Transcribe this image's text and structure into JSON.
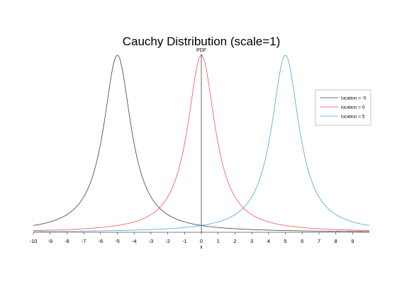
{
  "chart_data": {
    "type": "line",
    "title": "Cauchy Distribution (scale=1)",
    "xlabel": "x",
    "ylabel": "PDF",
    "xlim": [
      -10,
      10
    ],
    "ylim": [
      0,
      0.3183
    ],
    "x_ticks": [
      -10,
      -9,
      -8,
      -7,
      -6,
      -5,
      -4,
      -3,
      -2,
      -1,
      0,
      1,
      2,
      3,
      4,
      5,
      6,
      7,
      8,
      9
    ],
    "grid": false,
    "legend_position": "top-right",
    "series": [
      {
        "name": "location = -5",
        "location": -5,
        "scale": 1,
        "color": "#404040"
      },
      {
        "name": "location = 0",
        "location": 0,
        "scale": 1,
        "color": "#ff5050"
      },
      {
        "name": "location = 5",
        "location": 5,
        "scale": 1,
        "color": "#4aa3df"
      }
    ]
  }
}
